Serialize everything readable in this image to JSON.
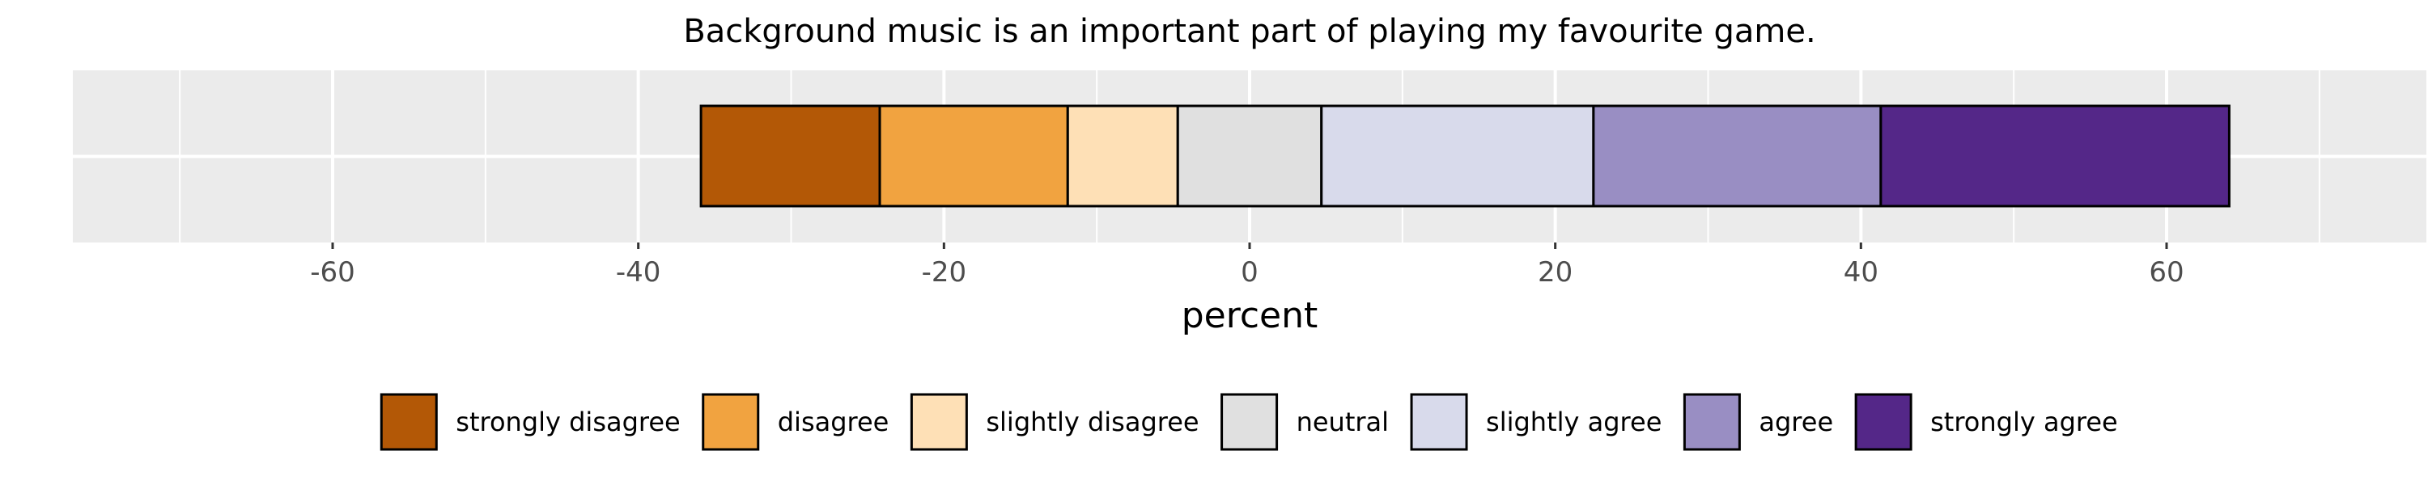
{
  "chart_data": {
    "type": "bar",
    "orientation": "horizontal",
    "stacked": "diverging",
    "title": "Background music is an important part of playing my favourite game.",
    "xlabel": "percent",
    "ylabel": "",
    "xlim": [
      -77,
      77
    ],
    "xticks": [
      -60,
      -40,
      -20,
      0,
      20,
      40,
      60
    ],
    "xtick_labels": [
      "-60",
      "-40",
      "-20",
      "0",
      "20",
      "40",
      "60"
    ],
    "grid": true,
    "legend_position": "bottom",
    "segments": [
      {
        "name": "strongly disagree",
        "start": -35.9,
        "end": -24.2,
        "value": 11.7,
        "color": "#b35806"
      },
      {
        "name": "disagree",
        "start": -24.2,
        "end": -11.9,
        "value": 12.3,
        "color": "#f1a340"
      },
      {
        "name": "slightly disagree",
        "start": -11.9,
        "end": -4.7,
        "value": 7.2,
        "color": "#fee0b6"
      },
      {
        "name": "neutral",
        "start": -4.7,
        "end": 4.7,
        "value": 9.4,
        "color": "#e0e0e0"
      },
      {
        "name": "slightly agree",
        "start": 4.7,
        "end": 22.5,
        "value": 17.8,
        "color": "#d8daeb"
      },
      {
        "name": "agree",
        "start": 22.5,
        "end": 41.3,
        "value": 18.8,
        "color": "#998ec3"
      },
      {
        "name": "strongly agree",
        "start": 41.3,
        "end": 64.1,
        "value": 22.8,
        "color": "#542788"
      }
    ]
  },
  "colors": {
    "panel_background": "#ebebeb",
    "gridline": "#ffffff",
    "bar_outline": "#000000",
    "tick_text": "#4d4d4d"
  }
}
